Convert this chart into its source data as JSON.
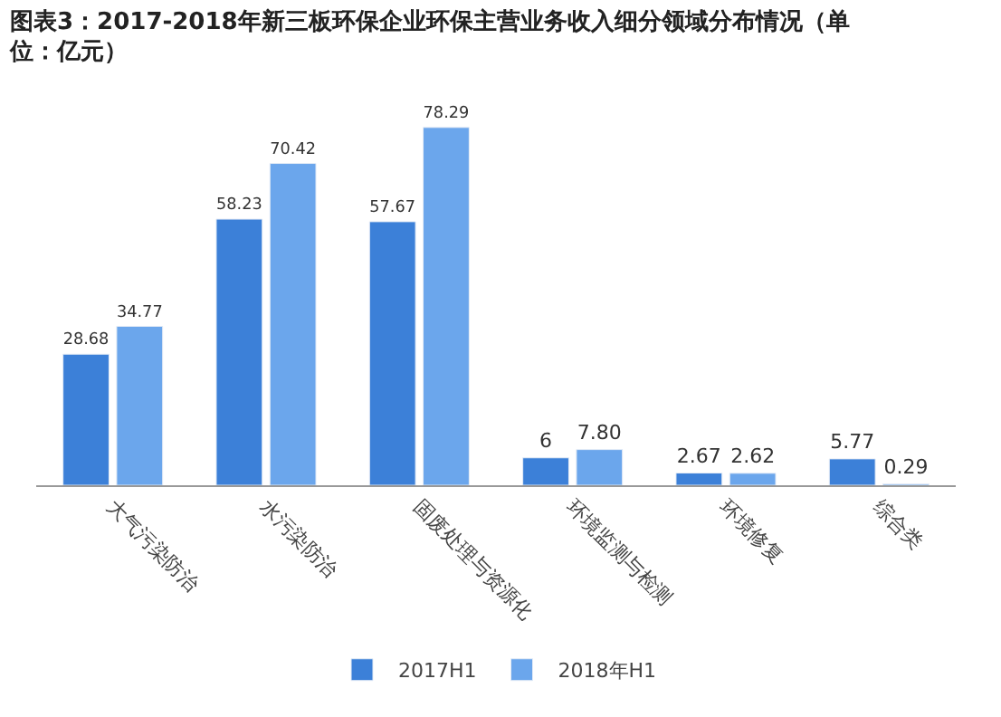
{
  "chart_data": {
    "type": "bar",
    "title": "图表3：2017-2018年新三板环保企业环保主营业务收入细分领域分布情况（单位：亿元）",
    "categories": [
      "大气污染防治",
      "水污染防治",
      "固废处理与资源化",
      "环境监测与检测",
      "环境修复",
      "综合类"
    ],
    "series": [
      {
        "name": "2017H1",
        "color": "#3c80d8",
        "values": [
          28.68,
          58.23,
          57.67,
          6,
          2.67,
          5.77
        ],
        "value_labels": [
          "28.68",
          "58.23",
          "57.67",
          "6",
          "2.67",
          "5.77"
        ]
      },
      {
        "name": "2018年H1",
        "color": "#6ba6ec",
        "values": [
          34.77,
          70.42,
          78.29,
          7.8,
          2.62,
          0.29
        ],
        "value_labels": [
          "34.77",
          "70.42",
          "78.29",
          "7.80",
          "2.62",
          "0.29"
        ]
      }
    ],
    "legend": "bottom"
  }
}
